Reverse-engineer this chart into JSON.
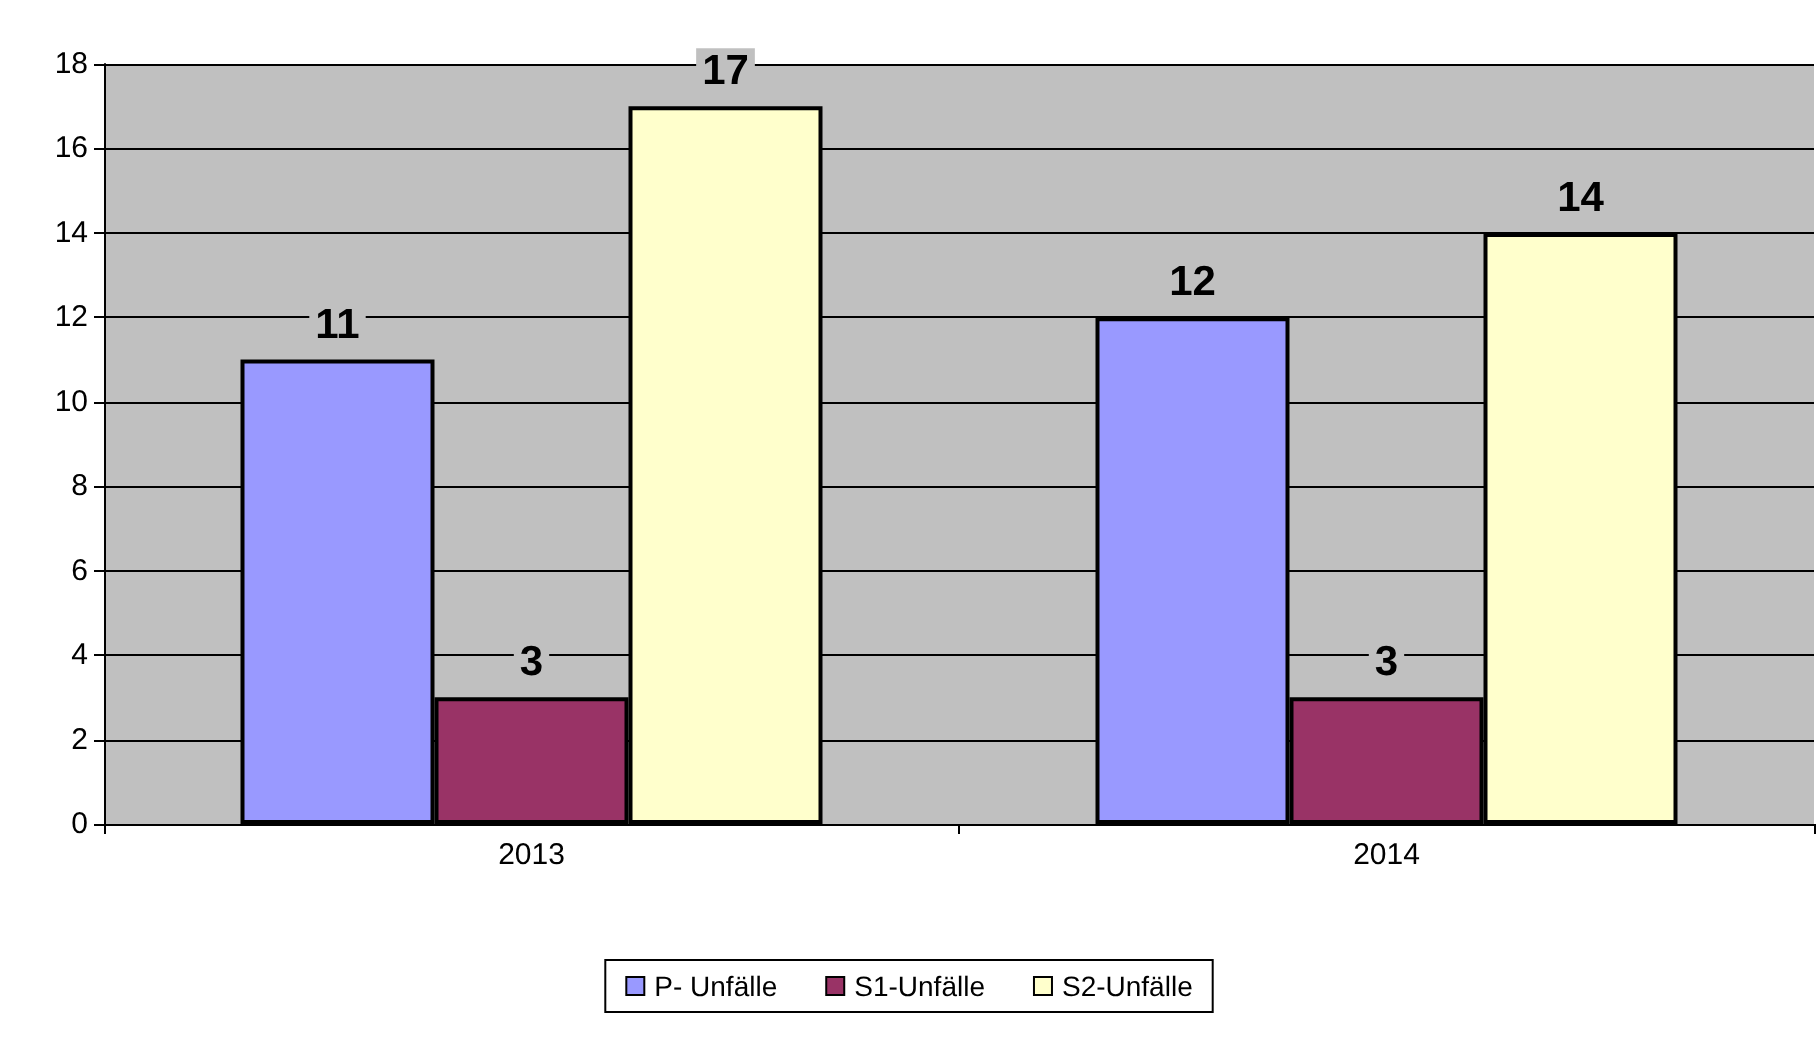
{
  "chart_data": {
    "type": "bar",
    "categories": [
      "2013",
      "2014"
    ],
    "series": [
      {
        "name": "P- Unfälle",
        "color": "#9999ff",
        "values": [
          11,
          12
        ]
      },
      {
        "name": "S1-Unfälle",
        "color": "#993366",
        "values": [
          3,
          3
        ]
      },
      {
        "name": "S2-Unfälle",
        "color": "#ffffcc",
        "values": [
          17,
          14
        ]
      }
    ],
    "ylim": [
      0,
      18
    ],
    "yticks": [
      0,
      2,
      4,
      6,
      8,
      10,
      12,
      14,
      16,
      18
    ],
    "grid": "y",
    "legend": "bottom",
    "data_labels": true
  }
}
